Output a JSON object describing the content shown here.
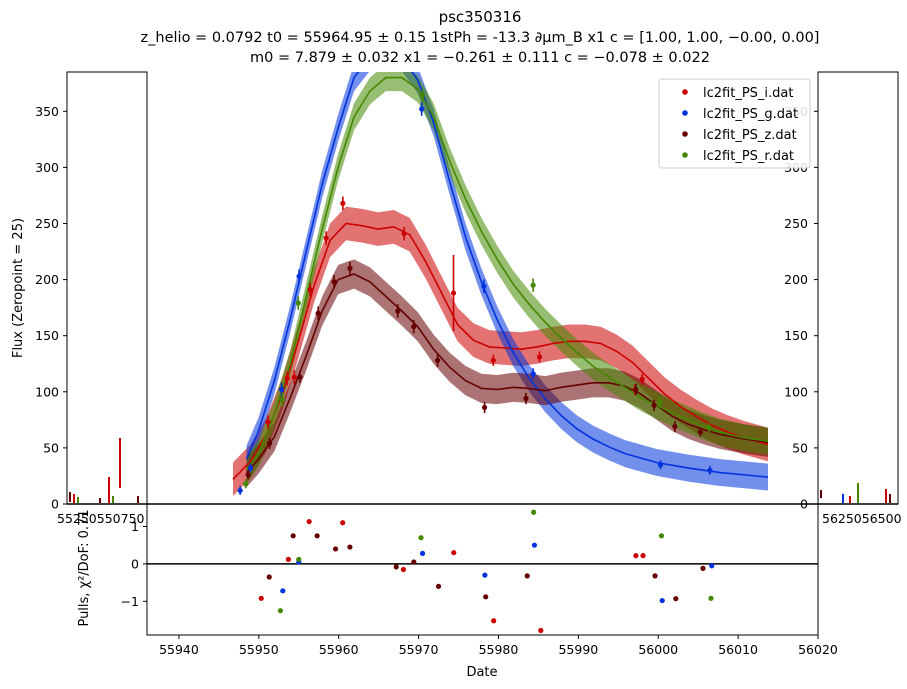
{
  "title": {
    "line1": "psc350316",
    "line2": "z_helio = 0.0792 t0 = 55964.95 ± 0.15 1stPh = -13.3 ∂μm_B x1 c = [1.00, 1.00, −0.00, 0.00]",
    "line3": "m0 = 7.879 ± 0.032 x1 = −0.261 ± 0.111 c = −0.078 ± 0.022"
  },
  "chart_data": {
    "type": "scatter",
    "xlabel": "Date",
    "ylabel_top": "Flux (Zeropoint = 25)",
    "ylabel_bottom": "Pulls, χ²/DoF: 0.71",
    "top_xlim": [
      55936,
      56014
    ],
    "top_ylim": [
      0,
      385
    ],
    "bottom_xlim": [
      55936,
      56020
    ],
    "bottom_ylim": [
      -1.9,
      1.6
    ],
    "x_ticks": [
      55940,
      55950,
      55960,
      55970,
      55980,
      55990,
      56000,
      56010,
      56020
    ],
    "y_ticks_top": [
      0,
      50,
      100,
      150,
      200,
      250,
      300,
      350
    ],
    "y_ticks_bottom": [
      -1,
      0,
      1
    ],
    "legend_position": "top-right",
    "series": [
      {
        "name": "lc2fit_PS_i.dat",
        "color": "#cc0000",
        "model": [
          [
            55946.8,
            22
          ],
          [
            55949,
            38
          ],
          [
            55951,
            62
          ],
          [
            55953,
            98
          ],
          [
            55955,
            145
          ],
          [
            55957,
            195
          ],
          [
            55959,
            235
          ],
          [
            55961,
            250
          ],
          [
            55963,
            248
          ],
          [
            55965,
            245
          ],
          [
            55967,
            247
          ],
          [
            55969,
            240
          ],
          [
            55971,
            216
          ],
          [
            55973,
            188
          ],
          [
            55975,
            160
          ],
          [
            55977,
            146
          ],
          [
            55979,
            140
          ],
          [
            55981,
            139
          ],
          [
            55983,
            138
          ],
          [
            55985,
            140
          ],
          [
            55987,
            143
          ],
          [
            55989,
            145
          ],
          [
            55991,
            145
          ],
          [
            55993,
            143
          ],
          [
            55995,
            136
          ],
          [
            55997,
            126
          ],
          [
            55999,
            112
          ],
          [
            56001,
            98
          ],
          [
            56003,
            87
          ],
          [
            56005,
            78
          ],
          [
            56007,
            70
          ],
          [
            56009,
            64
          ],
          [
            56011,
            59
          ],
          [
            56014,
            53
          ]
        ],
        "band": 15,
        "points": [
          [
            55951.2,
            73,
            6
          ],
          [
            55953.6,
            112,
            6
          ],
          [
            55954.5,
            113,
            6
          ],
          [
            55956.5,
            191,
            6
          ],
          [
            55958.5,
            237,
            6
          ],
          [
            55960.6,
            268,
            6
          ],
          [
            55968.3,
            241,
            6
          ],
          [
            55974.5,
            188,
            34
          ],
          [
            55979.5,
            128,
            5
          ],
          [
            55985.3,
            131,
            5
          ],
          [
            55997.3,
            102,
            5
          ],
          [
            55998.2,
            111,
            5
          ]
        ],
        "pulls": [
          [
            55950.3,
            -0.92
          ],
          [
            55953.7,
            0.12
          ],
          [
            55956.3,
            1.13
          ],
          [
            55960.5,
            1.1
          ],
          [
            55968.1,
            -0.15
          ],
          [
            55974.4,
            0.3
          ],
          [
            55979.4,
            -1.52
          ],
          [
            55985.3,
            -1.78
          ],
          [
            55997.2,
            0.22
          ],
          [
            55998.1,
            0.22
          ]
        ]
      },
      {
        "name": "lc2fit_PS_g.dat",
        "color": "#0033dd",
        "model": [
          [
            55948.5,
            40
          ],
          [
            55950,
            65
          ],
          [
            55952,
            110
          ],
          [
            55954,
            165
          ],
          [
            55956,
            225
          ],
          [
            55958,
            285
          ],
          [
            55960,
            335
          ],
          [
            55962,
            380
          ],
          [
            55964,
            398
          ],
          [
            55966,
            405
          ],
          [
            55968,
            398
          ],
          [
            55970,
            378
          ],
          [
            55972,
            340
          ],
          [
            55974,
            288
          ],
          [
            55976,
            238
          ],
          [
            55978,
            198
          ],
          [
            55980,
            164
          ],
          [
            55982,
            135
          ],
          [
            55984,
            112
          ],
          [
            55986,
            94
          ],
          [
            55988,
            79
          ],
          [
            55990,
            67
          ],
          [
            55992,
            58
          ],
          [
            55994,
            51
          ],
          [
            55996,
            45
          ],
          [
            55998,
            41
          ],
          [
            56000,
            37
          ],
          [
            56004,
            32
          ],
          [
            56008,
            28
          ],
          [
            56014,
            24
          ]
        ],
        "band": 12,
        "points": [
          [
            55947.7,
            12,
            4
          ],
          [
            55949.0,
            32,
            4
          ],
          [
            55952.9,
            102,
            6
          ],
          [
            55955.1,
            203,
            6
          ],
          [
            55970.5,
            352,
            6
          ],
          [
            55978.3,
            194,
            6
          ],
          [
            55984.5,
            116,
            5
          ],
          [
            56000.5,
            35,
            4
          ],
          [
            56006.7,
            30,
            4
          ]
        ],
        "pulls": [
          [
            55953.0,
            -0.72
          ],
          [
            55955.0,
            0.05
          ],
          [
            55970.5,
            0.28
          ],
          [
            55978.3,
            -0.3
          ],
          [
            55984.5,
            0.5
          ],
          [
            56000.5,
            -0.98
          ],
          [
            56006.7,
            -0.05
          ]
        ]
      },
      {
        "name": "lc2fit_PS_z.dat",
        "color": "#660000",
        "model": [
          [
            55948.5,
            28
          ],
          [
            55950,
            40
          ],
          [
            55952,
            60
          ],
          [
            55954,
            95
          ],
          [
            55956,
            132
          ],
          [
            55958,
            172
          ],
          [
            55960,
            200
          ],
          [
            55962,
            205
          ],
          [
            55964,
            198
          ],
          [
            55966,
            185
          ],
          [
            55968,
            172
          ],
          [
            55970,
            158
          ],
          [
            55972,
            138
          ],
          [
            55974,
            122
          ],
          [
            55976,
            110
          ],
          [
            55978,
            103
          ],
          [
            55980,
            102
          ],
          [
            55982,
            104
          ],
          [
            55984,
            103
          ],
          [
            55986,
            101
          ],
          [
            55988,
            104
          ],
          [
            55990,
            106
          ],
          [
            55992,
            108
          ],
          [
            55994,
            108
          ],
          [
            55996,
            105
          ],
          [
            55998,
            98
          ],
          [
            56000,
            88
          ],
          [
            56002,
            78
          ],
          [
            56004,
            71
          ],
          [
            56006,
            66
          ],
          [
            56008,
            62
          ],
          [
            56011,
            58
          ],
          [
            56014,
            55
          ]
        ],
        "band": 13,
        "points": [
          [
            55948.7,
            26,
            4
          ],
          [
            55951.4,
            54,
            5
          ],
          [
            55955.2,
            113,
            5
          ],
          [
            55957.5,
            170,
            6
          ],
          [
            55959.5,
            198,
            6
          ],
          [
            55961.5,
            210,
            6
          ],
          [
            55967.5,
            172,
            6
          ],
          [
            55969.5,
            158,
            6
          ],
          [
            55972.5,
            128,
            6
          ],
          [
            55978.4,
            86,
            5
          ],
          [
            55983.6,
            94,
            5
          ],
          [
            55997.4,
            102,
            5
          ],
          [
            55999.7,
            88,
            5
          ],
          [
            56002.3,
            69,
            5
          ],
          [
            56005.5,
            64,
            4
          ]
        ],
        "pulls": [
          [
            55951.3,
            -0.35
          ],
          [
            55954.3,
            0.75
          ],
          [
            55957.3,
            0.75
          ],
          [
            55959.6,
            0.4
          ],
          [
            55961.4,
            0.45
          ],
          [
            55967.2,
            -0.08
          ],
          [
            55969.4,
            0.05
          ],
          [
            55972.5,
            -0.6
          ],
          [
            55978.4,
            -0.88
          ],
          [
            55983.6,
            -0.32
          ],
          [
            55999.6,
            -0.32
          ],
          [
            56002.2,
            -0.93
          ],
          [
            56005.6,
            -0.12
          ]
        ]
      },
      {
        "name": "lc2fit_PS_r.dat",
        "color": "#448800",
        "model": [
          [
            55948.5,
            30
          ],
          [
            55950,
            45
          ],
          [
            55952,
            80
          ],
          [
            55954,
            125
          ],
          [
            55956,
            185
          ],
          [
            55958,
            245
          ],
          [
            55960,
            300
          ],
          [
            55962,
            345
          ],
          [
            55964,
            368
          ],
          [
            55966,
            380
          ],
          [
            55968,
            380
          ],
          [
            55970,
            370
          ],
          [
            55972,
            345
          ],
          [
            55974,
            306
          ],
          [
            55976,
            272
          ],
          [
            55978,
            243
          ],
          [
            55980,
            218
          ],
          [
            55982,
            196
          ],
          [
            55984,
            178
          ],
          [
            55986,
            162
          ],
          [
            55988,
            148
          ],
          [
            55990,
            135
          ],
          [
            55992,
            123
          ],
          [
            55994,
            113
          ],
          [
            55996,
            104
          ],
          [
            55998,
            95
          ],
          [
            56000,
            88
          ],
          [
            56002,
            81
          ],
          [
            56004,
            75
          ],
          [
            56006,
            69
          ],
          [
            56008,
            64
          ],
          [
            56011,
            59
          ],
          [
            56014,
            56
          ]
        ],
        "band": 12,
        "points": [
          [
            55948.4,
            18,
            4
          ],
          [
            55953.0,
            93,
            6
          ],
          [
            55955.0,
            179,
            6
          ],
          [
            55970.6,
            364,
            6
          ],
          [
            55984.5,
            195,
            6
          ],
          [
            56000.4,
            91,
            5
          ],
          [
            56006.6,
            68,
            4
          ]
        ],
        "pulls": [
          [
            55952.7,
            -1.25
          ],
          [
            55955.0,
            0.12
          ],
          [
            55970.3,
            0.7
          ],
          [
            55984.4,
            1.38
          ],
          [
            56000.4,
            0.75
          ],
          [
            56006.6,
            -0.92
          ]
        ]
      }
    ],
    "side_panels": {
      "left_xtick_label": "55250550750",
      "right_xtick_label": "5625056500"
    }
  }
}
